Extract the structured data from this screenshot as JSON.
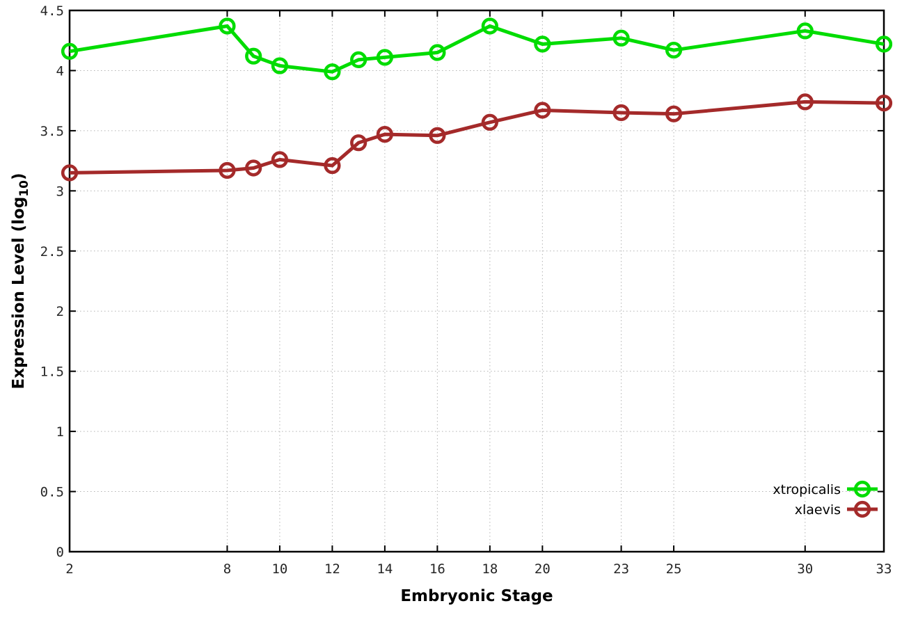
{
  "chart_data": {
    "type": "line",
    "title": "",
    "xlabel": "Embryonic Stage",
    "ylabel": "Expression Level (log10)",
    "ylabel_parts": {
      "main": "Expression Level (log",
      "sub": "10",
      "end": ")"
    },
    "x": [
      2,
      8,
      9,
      10,
      12,
      13,
      14,
      16,
      18,
      20,
      23,
      25,
      30,
      33
    ],
    "xticks": [
      2,
      8,
      10,
      12,
      14,
      16,
      18,
      20,
      23,
      25,
      30,
      33
    ],
    "yticks": [
      0,
      0.5,
      1,
      1.5,
      2,
      2.5,
      3,
      3.5,
      4,
      4.5
    ],
    "xlim": [
      2,
      33
    ],
    "ylim": [
      0,
      4.5
    ],
    "grid": true,
    "grid_color": "#b3b3b3",
    "axis_color": "#000000",
    "legend_position": "bottom-right",
    "series": [
      {
        "name": "xtropicalis",
        "color": "#00dc00",
        "values": [
          4.16,
          4.37,
          4.12,
          4.04,
          3.99,
          4.09,
          4.11,
          4.15,
          4.37,
          4.22,
          4.27,
          4.17,
          4.33,
          4.22
        ]
      },
      {
        "name": "xlaevis",
        "color": "#a42a2a",
        "values": [
          3.15,
          3.17,
          3.19,
          3.26,
          3.21,
          3.4,
          3.47,
          3.46,
          3.57,
          3.67,
          3.65,
          3.64,
          3.74,
          3.73
        ]
      }
    ]
  }
}
